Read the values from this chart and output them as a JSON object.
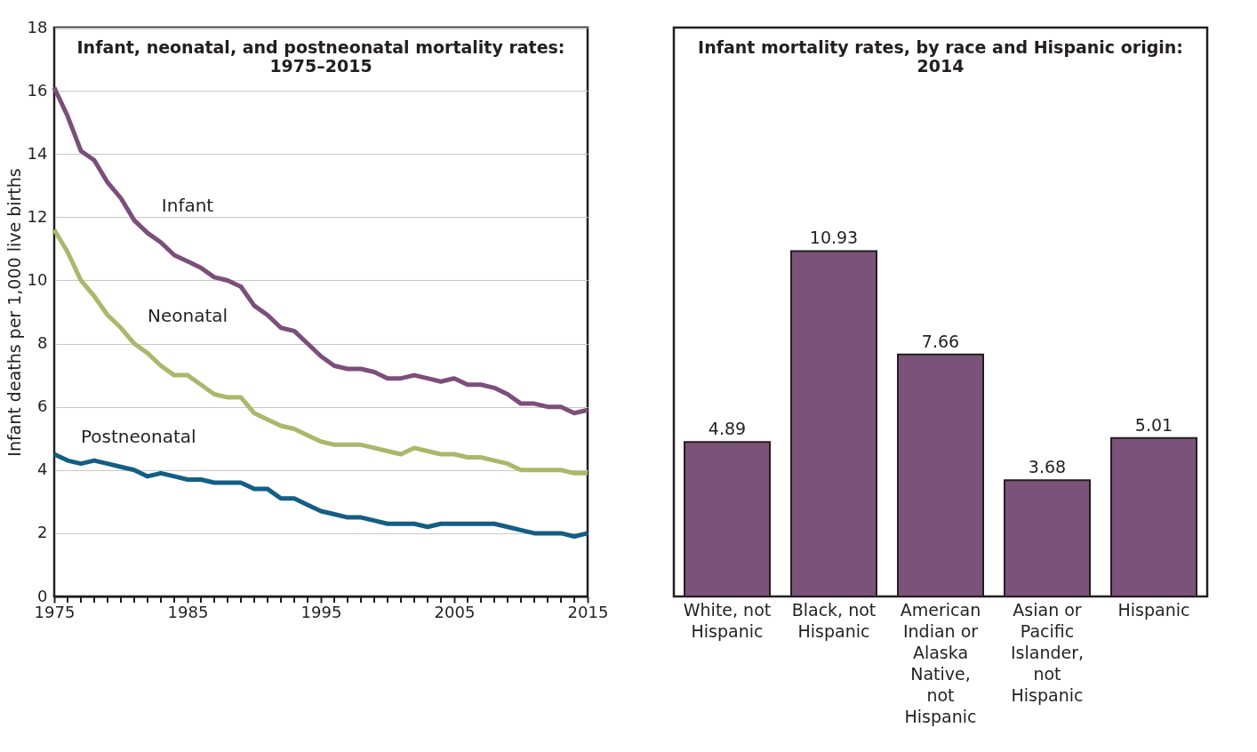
{
  "chart_data": [
    {
      "type": "line",
      "title": "Infant, neonatal, and postneonatal mortality rates: 1975–2015",
      "ylabel": "Infant deaths per 1,000 live births",
      "x": [
        1975,
        1976,
        1977,
        1978,
        1979,
        1980,
        1981,
        1982,
        1983,
        1984,
        1985,
        1986,
        1987,
        1988,
        1989,
        1990,
        1991,
        1992,
        1993,
        1994,
        1995,
        1996,
        1997,
        1998,
        1999,
        2000,
        2001,
        2002,
        2003,
        2004,
        2005,
        2006,
        2007,
        2008,
        2009,
        2010,
        2011,
        2012,
        2013,
        2014,
        2015
      ],
      "series": [
        {
          "name": "Infant",
          "color": "#7b4f7a",
          "values": [
            16.1,
            15.2,
            14.1,
            13.8,
            13.1,
            12.6,
            11.9,
            11.5,
            11.2,
            10.8,
            10.6,
            10.4,
            10.1,
            10.0,
            9.8,
            9.2,
            8.9,
            8.5,
            8.4,
            8.0,
            7.6,
            7.3,
            7.2,
            7.2,
            7.1,
            6.9,
            6.9,
            7.0,
            6.9,
            6.8,
            6.9,
            6.7,
            6.7,
            6.6,
            6.4,
            6.1,
            6.1,
            6.0,
            6.0,
            5.8,
            5.9
          ]
        },
        {
          "name": "Neonatal",
          "color": "#a9b86a",
          "values": [
            11.6,
            10.9,
            10.0,
            9.5,
            8.9,
            8.5,
            8.0,
            7.7,
            7.3,
            7.0,
            7.0,
            6.7,
            6.4,
            6.3,
            6.3,
            5.8,
            5.6,
            5.4,
            5.3,
            5.1,
            4.9,
            4.8,
            4.8,
            4.8,
            4.7,
            4.6,
            4.5,
            4.7,
            4.6,
            4.5,
            4.5,
            4.4,
            4.4,
            4.3,
            4.2,
            4.0,
            4.0,
            4.0,
            4.0,
            3.9,
            3.9
          ]
        },
        {
          "name": "Postneonatal",
          "color": "#135e84",
          "values": [
            4.5,
            4.3,
            4.2,
            4.3,
            4.2,
            4.1,
            4.0,
            3.8,
            3.9,
            3.8,
            3.7,
            3.7,
            3.6,
            3.6,
            3.6,
            3.4,
            3.4,
            3.1,
            3.1,
            2.9,
            2.7,
            2.6,
            2.5,
            2.5,
            2.4,
            2.3,
            2.3,
            2.3,
            2.2,
            2.3,
            2.3,
            2.3,
            2.3,
            2.3,
            2.2,
            2.1,
            2.0,
            2.0,
            2.0,
            1.9,
            2.0
          ]
        }
      ],
      "xlim": [
        1975,
        2015
      ],
      "xticks": [
        1975,
        {
          "value": 1976,
          "label": null
        },
        {
          "value": 1977,
          "label": null
        },
        {
          "value": 1978,
          "label": null
        },
        {
          "value": 1979,
          "label": null
        },
        {
          "value": 1980,
          "label": null
        },
        {
          "value": 1981,
          "label": null
        },
        {
          "value": 1982,
          "label": null
        },
        {
          "value": 1983,
          "label": null
        },
        {
          "value": 1984,
          "label": null
        },
        1985,
        {
          "value": 1986,
          "label": null
        },
        {
          "value": 1987,
          "label": null
        },
        {
          "value": 1988,
          "label": null
        },
        {
          "value": 1989,
          "label": null
        },
        {
          "value": 1990,
          "label": null
        },
        {
          "value": 1991,
          "label": null
        },
        {
          "value": 1992,
          "label": null
        },
        {
          "value": 1993,
          "label": null
        },
        {
          "value": 1994,
          "label": null
        },
        1995,
        {
          "value": 1996,
          "label": null
        },
        {
          "value": 1997,
          "label": null
        },
        {
          "value": 1998,
          "label": null
        },
        {
          "value": 1999,
          "label": null
        },
        {
          "value": 2000,
          "label": null
        },
        {
          "value": 2001,
          "label": null
        },
        {
          "value": 2002,
          "label": null
        },
        {
          "value": 2003,
          "label": null
        },
        {
          "value": 2004,
          "label": null
        },
        2005,
        {
          "value": 2006,
          "label": null
        },
        {
          "value": 2007,
          "label": null
        },
        {
          "value": 2008,
          "label": null
        },
        {
          "value": 2009,
          "label": null
        },
        {
          "value": 2010,
          "label": null
        },
        {
          "value": 2011,
          "label": null
        },
        {
          "value": 2012,
          "label": null
        },
        {
          "value": 2013,
          "label": null
        },
        {
          "value": 2014,
          "label": null
        },
        2015
      ],
      "ylim": [
        0,
        18
      ],
      "yticks": [
        0,
        2,
        4,
        6,
        8,
        10,
        12,
        14,
        16,
        18
      ],
      "grid": "y",
      "legend": false,
      "line_style": "solid",
      "marker": "none"
    },
    {
      "type": "bar",
      "title": "Infant mortality rates, by race and Hispanic origin: 2014",
      "categories": [
        "White, not Hispanic",
        "Black, not Hispanic",
        "American Indian or Alaska Native, not Hispanic",
        "Asian or Pacific Islander, not Hispanic",
        "Hispanic"
      ],
      "values": [
        4.89,
        10.93,
        7.66,
        3.68,
        5.01
      ],
      "color": "#7b527a",
      "data_labels": true,
      "ylim": [
        0,
        18
      ],
      "tick_labels": "x",
      "grid": false
    }
  ]
}
